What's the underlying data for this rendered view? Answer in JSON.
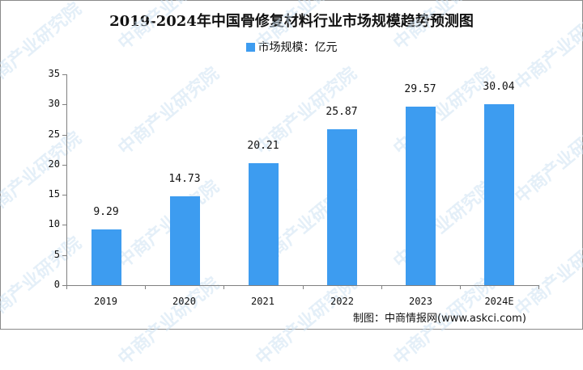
{
  "chart_data": {
    "type": "bar",
    "title": "2019-2024年中国骨修复材料行业市场规模趋势预测图",
    "legend": [
      {
        "name": "市场规模：亿元",
        "color": "#3d9cf0"
      }
    ],
    "legend_position": "top",
    "categories": [
      "2019",
      "2020",
      "2021",
      "2022",
      "2023",
      "2024E"
    ],
    "series": [
      {
        "name": "市场规模：亿元",
        "values": [
          9.29,
          14.73,
          20.21,
          25.87,
          29.57,
          30.04
        ]
      }
    ],
    "value_labels": [
      "9.29",
      "14.73",
      "20.21",
      "25.87",
      "29.57",
      "30.04"
    ],
    "xlabel": "",
    "ylabel": "",
    "ylim": [
      0,
      35
    ],
    "yticks": [
      "0",
      "5",
      "10",
      "15",
      "20",
      "25",
      "30",
      "35"
    ],
    "grid": false,
    "bar_color": "#3d9cf0"
  },
  "source": "制图：中商情报网(www.askci.com)",
  "watermark": "中商产业研究院"
}
